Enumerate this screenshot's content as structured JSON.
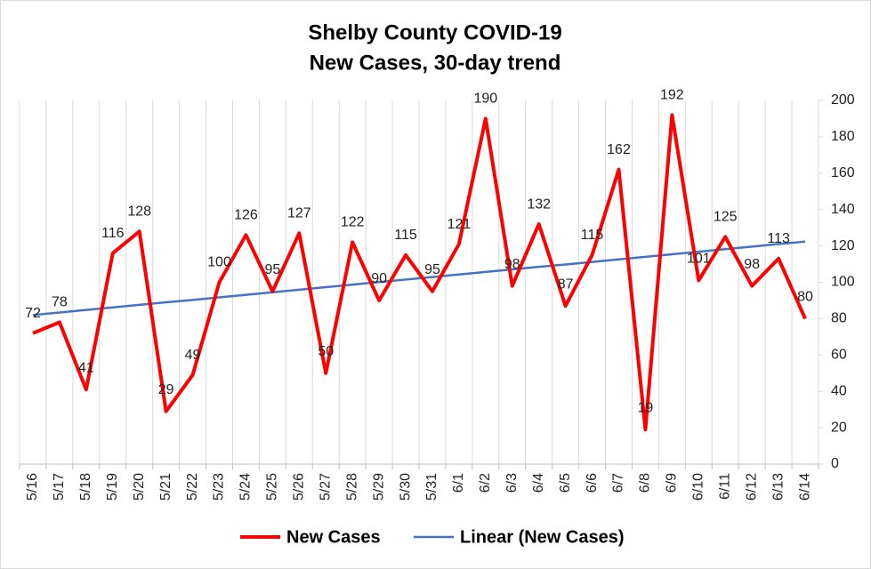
{
  "chart_data": {
    "type": "line",
    "title": "Shelby County COVID-19",
    "subtitle": "New Cases, 30-day trend",
    "categories": [
      "5/16",
      "5/17",
      "5/18",
      "5/19",
      "5/20",
      "5/21",
      "5/22",
      "5/23",
      "5/24",
      "5/25",
      "5/26",
      "5/27",
      "5/28",
      "5/29",
      "5/30",
      "5/31",
      "6/1",
      "6/2",
      "6/3",
      "6/4",
      "6/5",
      "6/6",
      "6/7",
      "6/8",
      "6/9",
      "6/10",
      "6/11",
      "6/12",
      "6/13",
      "6/14"
    ],
    "series": [
      {
        "name": "New Cases",
        "color": "#ff0000",
        "data_labels": true,
        "values": [
          72,
          78,
          41,
          116,
          128,
          29,
          49,
          100,
          126,
          95,
          127,
          50,
          122,
          90,
          115,
          95,
          121,
          190,
          98,
          132,
          87,
          115,
          162,
          19,
          192,
          101,
          125,
          98,
          113,
          80
        ]
      },
      {
        "name": "Linear (New Cases)",
        "color": "#4472c4",
        "data_labels": false,
        "values": [
          82.0,
          83.4,
          84.8,
          86.2,
          87.6,
          89.0,
          90.3,
          91.7,
          93.1,
          94.5,
          95.9,
          97.3,
          98.7,
          100.1,
          101.5,
          102.9,
          104.3,
          105.7,
          107.1,
          108.5,
          109.8,
          111.2,
          112.6,
          114.0,
          115.4,
          116.8,
          118.2,
          119.6,
          121.0,
          122.4
        ]
      }
    ],
    "ylim": [
      0,
      200
    ],
    "yticks": [
      0,
      20,
      40,
      60,
      80,
      100,
      120,
      140,
      160,
      180,
      200
    ],
    "y_axis_side": "right",
    "legend": "bottom",
    "grid": "vertical"
  }
}
